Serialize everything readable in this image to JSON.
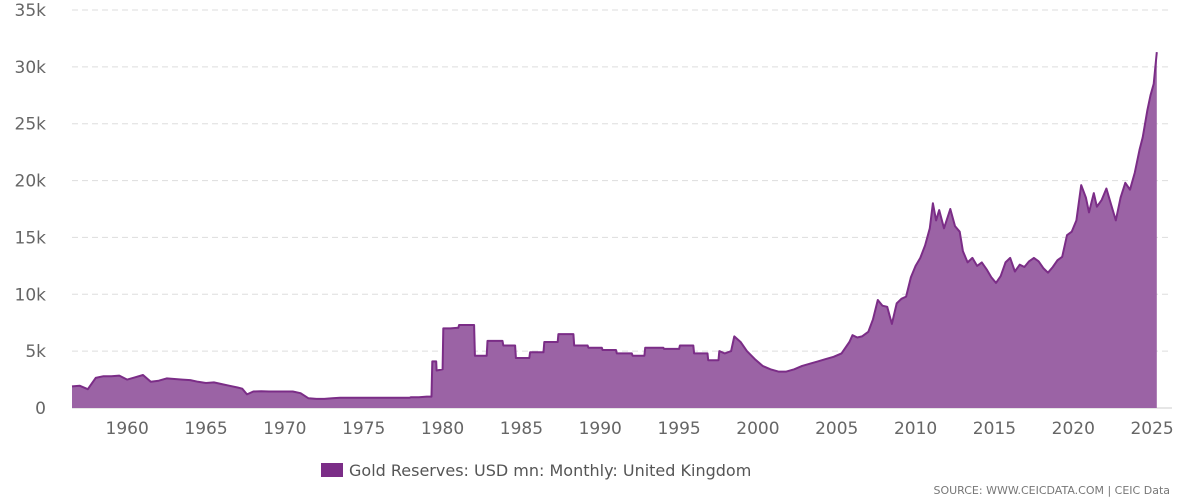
{
  "chart_data": {
    "type": "area",
    "title": "",
    "xlabel": "",
    "ylabel": "",
    "x_ticks": [
      "1960",
      "1965",
      "1970",
      "1975",
      "1980",
      "1985",
      "1990",
      "1995",
      "2000",
      "2005",
      "2010",
      "2015",
      "2020",
      "2025"
    ],
    "y_ticks": [
      "0",
      "5k",
      "10k",
      "15k",
      "20k",
      "25k",
      "30k",
      "35k"
    ],
    "xlim": [
      1956.5,
      2025.5
    ],
    "ylim": [
      0,
      35000
    ],
    "grid": true,
    "legend_position": "bottom-center",
    "series": [
      {
        "name": "Gold Reserves: USD mn: Monthly: United Kingdom",
        "color": "#7b2d87",
        "fill": "#9b63a5",
        "points": [
          [
            1956.5,
            1900
          ],
          [
            1957.0,
            1950
          ],
          [
            1957.5,
            1650
          ],
          [
            1958.0,
            2650
          ],
          [
            1958.5,
            2800
          ],
          [
            1959.0,
            2800
          ],
          [
            1959.5,
            2850
          ],
          [
            1960.0,
            2500
          ],
          [
            1960.5,
            2700
          ],
          [
            1961.0,
            2900
          ],
          [
            1961.5,
            2300
          ],
          [
            1962.0,
            2400
          ],
          [
            1962.5,
            2600
          ],
          [
            1963.0,
            2550
          ],
          [
            1963.5,
            2500
          ],
          [
            1964.0,
            2450
          ],
          [
            1964.5,
            2300
          ],
          [
            1965.0,
            2200
          ],
          [
            1965.5,
            2250
          ],
          [
            1966.0,
            2100
          ],
          [
            1966.5,
            1950
          ],
          [
            1967.0,
            1800
          ],
          [
            1967.3,
            1700
          ],
          [
            1967.6,
            1200
          ],
          [
            1968.0,
            1450
          ],
          [
            1968.5,
            1480
          ],
          [
            1969.0,
            1450
          ],
          [
            1969.5,
            1450
          ],
          [
            1970.0,
            1450
          ],
          [
            1970.5,
            1450
          ],
          [
            1971.0,
            1300
          ],
          [
            1971.5,
            850
          ],
          [
            1972.0,
            800
          ],
          [
            1972.5,
            800
          ],
          [
            1973.0,
            850
          ],
          [
            1973.5,
            900
          ],
          [
            1974.0,
            900
          ],
          [
            1975.0,
            900
          ],
          [
            1976.0,
            900
          ],
          [
            1977.0,
            900
          ],
          [
            1977.9,
            900
          ],
          [
            1978.0,
            950
          ],
          [
            1978.5,
            950
          ],
          [
            1979.0,
            1000
          ],
          [
            1979.3,
            1000
          ],
          [
            1979.35,
            4100
          ],
          [
            1979.6,
            4100
          ],
          [
            1979.62,
            3300
          ],
          [
            1980.0,
            3400
          ],
          [
            1980.05,
            7000
          ],
          [
            1980.5,
            7000
          ],
          [
            1981.0,
            7050
          ],
          [
            1981.05,
            7300
          ],
          [
            1981.5,
            7300
          ],
          [
            1982.0,
            7300
          ],
          [
            1982.05,
            4600
          ],
          [
            1982.8,
            4600
          ],
          [
            1982.85,
            5900
          ],
          [
            1983.5,
            5900
          ],
          [
            1983.8,
            5900
          ],
          [
            1983.85,
            5500
          ],
          [
            1984.6,
            5500
          ],
          [
            1984.65,
            4400
          ],
          [
            1985.5,
            4400
          ],
          [
            1985.55,
            4900
          ],
          [
            1986.4,
            4900
          ],
          [
            1986.45,
            5800
          ],
          [
            1987.3,
            5800
          ],
          [
            1987.35,
            6500
          ],
          [
            1988.3,
            6500
          ],
          [
            1988.35,
            5500
          ],
          [
            1989.2,
            5500
          ],
          [
            1989.25,
            5300
          ],
          [
            1990.1,
            5300
          ],
          [
            1990.15,
            5100
          ],
          [
            1991.0,
            5100
          ],
          [
            1991.05,
            4800
          ],
          [
            1992.0,
            4800
          ],
          [
            1992.05,
            4600
          ],
          [
            1992.8,
            4600
          ],
          [
            1992.85,
            5300
          ],
          [
            1994.0,
            5300
          ],
          [
            1994.05,
            5200
          ],
          [
            1995.0,
            5200
          ],
          [
            1995.05,
            5500
          ],
          [
            1995.9,
            5500
          ],
          [
            1995.95,
            4800
          ],
          [
            1996.8,
            4800
          ],
          [
            1996.85,
            4200
          ],
          [
            1997.5,
            4200
          ],
          [
            1997.55,
            5000
          ],
          [
            1997.9,
            4800
          ],
          [
            1998.3,
            5000
          ],
          [
            1998.5,
            6300
          ],
          [
            1998.9,
            5800
          ],
          [
            1999.3,
            5000
          ],
          [
            1999.8,
            4300
          ],
          [
            2000.3,
            3700
          ],
          [
            2000.8,
            3400
          ],
          [
            2001.3,
            3200
          ],
          [
            2001.8,
            3200
          ],
          [
            2002.3,
            3400
          ],
          [
            2002.8,
            3700
          ],
          [
            2003.3,
            3900
          ],
          [
            2003.8,
            4100
          ],
          [
            2004.3,
            4300
          ],
          [
            2004.8,
            4500
          ],
          [
            2005.3,
            4800
          ],
          [
            2005.8,
            5800
          ],
          [
            2006.0,
            6400
          ],
          [
            2006.3,
            6200
          ],
          [
            2006.6,
            6300
          ],
          [
            2007.0,
            6700
          ],
          [
            2007.3,
            7800
          ],
          [
            2007.6,
            9500
          ],
          [
            2007.9,
            9000
          ],
          [
            2008.2,
            8900
          ],
          [
            2008.5,
            7400
          ],
          [
            2008.8,
            9200
          ],
          [
            2009.1,
            9600
          ],
          [
            2009.4,
            9800
          ],
          [
            2009.7,
            11500
          ],
          [
            2010.0,
            12500
          ],
          [
            2010.3,
            13200
          ],
          [
            2010.6,
            14300
          ],
          [
            2010.9,
            15800
          ],
          [
            2011.1,
            18000
          ],
          [
            2011.3,
            16500
          ],
          [
            2011.5,
            17400
          ],
          [
            2011.8,
            15800
          ],
          [
            2012.2,
            17500
          ],
          [
            2012.5,
            16000
          ],
          [
            2012.8,
            15500
          ],
          [
            2013.0,
            13800
          ],
          [
            2013.3,
            12800
          ],
          [
            2013.6,
            13200
          ],
          [
            2013.9,
            12500
          ],
          [
            2014.2,
            12800
          ],
          [
            2014.5,
            12200
          ],
          [
            2014.8,
            11500
          ],
          [
            2015.1,
            11000
          ],
          [
            2015.4,
            11600
          ],
          [
            2015.7,
            12800
          ],
          [
            2016.0,
            13200
          ],
          [
            2016.3,
            12000
          ],
          [
            2016.6,
            12600
          ],
          [
            2016.9,
            12400
          ],
          [
            2017.2,
            12900
          ],
          [
            2017.5,
            13200
          ],
          [
            2017.8,
            12900
          ],
          [
            2018.1,
            12300
          ],
          [
            2018.4,
            11900
          ],
          [
            2018.7,
            12400
          ],
          [
            2019.0,
            13000
          ],
          [
            2019.3,
            13300
          ],
          [
            2019.6,
            15200
          ],
          [
            2019.9,
            15500
          ],
          [
            2020.2,
            16500
          ],
          [
            2020.5,
            19600
          ],
          [
            2020.8,
            18500
          ],
          [
            2021.0,
            17200
          ],
          [
            2021.3,
            18900
          ],
          [
            2021.5,
            17700
          ],
          [
            2021.8,
            18300
          ],
          [
            2022.1,
            19300
          ],
          [
            2022.4,
            17900
          ],
          [
            2022.7,
            16500
          ],
          [
            2023.0,
            18500
          ],
          [
            2023.3,
            19800
          ],
          [
            2023.6,
            19200
          ],
          [
            2023.9,
            20700
          ],
          [
            2024.2,
            22700
          ],
          [
            2024.4,
            23800
          ],
          [
            2024.7,
            26200
          ],
          [
            2024.9,
            27500
          ],
          [
            2025.1,
            28500
          ],
          [
            2025.3,
            31300
          ]
        ]
      }
    ]
  },
  "legend": {
    "label": "Gold Reserves: USD mn: Monthly: United Kingdom",
    "color": "#7b2d87"
  },
  "source": "SOURCE: WWW.CEICDATA.COM | CEIC Data"
}
